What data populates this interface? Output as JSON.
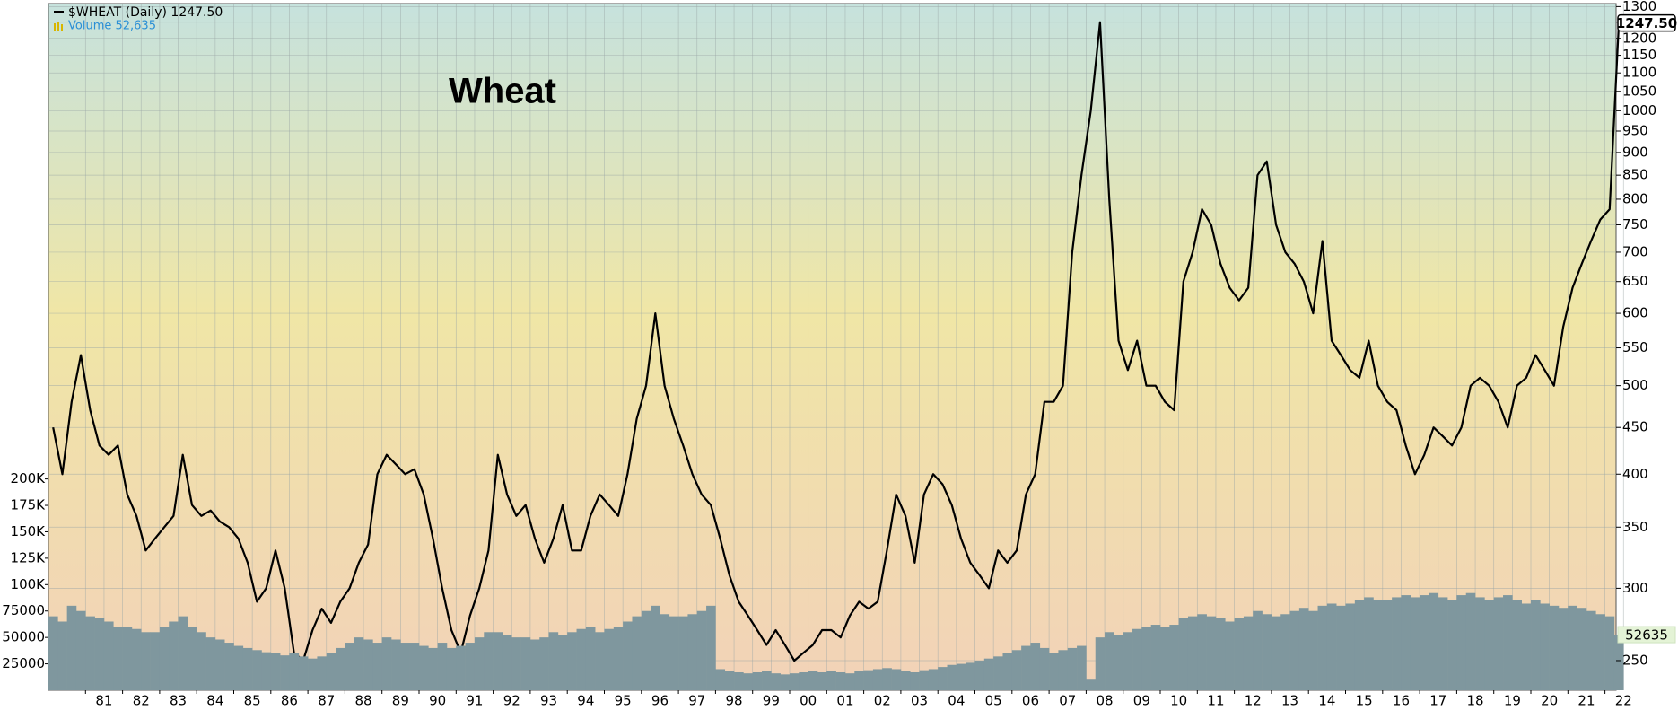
{
  "chart_data": {
    "type": "line",
    "title": "Wheat",
    "categories": [
      null,
      null,
      null,
      null,
      "81",
      null,
      null,
      null,
      "82",
      null,
      null,
      null,
      "83",
      null,
      null,
      null,
      "84",
      null,
      null,
      null,
      "85",
      null,
      null,
      null,
      "86",
      null,
      null,
      null,
      "87",
      null,
      null,
      null,
      "88",
      null,
      null,
      null,
      "89",
      null,
      null,
      null,
      "90",
      null,
      null,
      null,
      "91",
      null,
      null,
      null,
      "92",
      null,
      null,
      null,
      "93",
      null,
      null,
      null,
      "94",
      null,
      null,
      null,
      "95",
      null,
      null,
      null,
      "96",
      null,
      null,
      null,
      "97",
      null,
      null,
      null,
      "98",
      null,
      null,
      null,
      "99",
      null,
      null,
      null,
      "00",
      null,
      null,
      null,
      "01",
      null,
      null,
      null,
      "02",
      null,
      null,
      null,
      "03",
      null,
      null,
      null,
      "04",
      null,
      null,
      null,
      "05",
      null,
      null,
      null,
      "06",
      null,
      null,
      null,
      "07",
      null,
      null,
      null,
      "08",
      null,
      null,
      null,
      "09",
      null,
      null,
      null,
      "10",
      null,
      null,
      null,
      "11",
      null,
      null,
      null,
      "12",
      null,
      null,
      null,
      "13",
      null,
      null,
      null,
      "14",
      null,
      null,
      null,
      "15",
      null,
      null,
      null,
      "16",
      null,
      null,
      null,
      "17",
      null,
      null,
      null,
      "18",
      null,
      null,
      null,
      "19",
      null,
      null,
      null,
      "20",
      null,
      null,
      null,
      "21",
      null,
      null,
      null,
      "22",
      null
    ],
    "series": [
      {
        "name": "$WHEAT (Daily) 1247.50",
        "color": "#000000",
        "tag": "1247.50",
        "values": [
          450,
          400,
          480,
          540,
          470,
          430,
          420,
          430,
          380,
          360,
          330,
          340,
          350,
          360,
          420,
          370,
          360,
          365,
          355,
          350,
          340,
          320,
          290,
          300,
          330,
          300,
          255,
          250,
          270,
          285,
          275,
          290,
          300,
          320,
          335,
          400,
          420,
          410,
          400,
          405,
          380,
          340,
          300,
          270,
          255,
          280,
          300,
          330,
          420,
          380,
          360,
          370,
          340,
          320,
          340,
          370,
          330,
          330,
          360,
          380,
          370,
          360,
          400,
          460,
          500,
          600,
          500,
          460,
          430,
          400,
          380,
          370,
          340,
          310,
          290,
          280,
          270,
          260,
          270,
          260,
          250,
          255,
          260,
          270,
          270,
          265,
          280,
          290,
          285,
          290,
          330,
          380,
          360,
          320,
          380,
          400,
          390,
          370,
          340,
          320,
          310,
          300,
          330,
          320,
          330,
          380,
          400,
          480,
          480,
          500,
          700,
          850,
          1000,
          1250,
          800,
          560,
          520,
          560,
          500,
          500,
          480,
          470,
          650,
          700,
          780,
          750,
          680,
          640,
          620,
          640,
          850,
          880,
          750,
          700,
          680,
          650,
          600,
          720,
          560,
          540,
          520,
          510,
          560,
          500,
          480,
          470,
          430,
          400,
          420,
          450,
          440,
          430,
          450,
          500,
          510,
          500,
          480,
          450,
          500,
          510,
          540,
          520,
          500,
          580,
          640,
          680,
          720,
          760,
          780,
          1247.5
        ]
      },
      {
        "name": "Volume 52,635",
        "color": "#7f979e",
        "axis": "y2",
        "tag": "52635",
        "values": [
          70000,
          65000,
          80000,
          75000,
          70000,
          68000,
          65000,
          60000,
          60000,
          58000,
          55000,
          55000,
          60000,
          65000,
          70000,
          60000,
          55000,
          50000,
          48000,
          45000,
          42000,
          40000,
          38000,
          36000,
          35000,
          33000,
          35000,
          32000,
          30000,
          32000,
          35000,
          40000,
          45000,
          50000,
          48000,
          45000,
          50000,
          48000,
          45000,
          45000,
          42000,
          40000,
          45000,
          40000,
          42000,
          45000,
          50000,
          55000,
          55000,
          52000,
          50000,
          50000,
          48000,
          50000,
          55000,
          52000,
          55000,
          58000,
          60000,
          55000,
          58000,
          60000,
          65000,
          70000,
          75000,
          80000,
          72000,
          70000,
          70000,
          72000,
          75000,
          80000,
          20000,
          18000,
          17000,
          16000,
          17000,
          18000,
          16000,
          15000,
          16000,
          17000,
          18000,
          17000,
          18000,
          17000,
          16000,
          18000,
          19000,
          20000,
          21000,
          20000,
          18000,
          17000,
          19000,
          20000,
          22000,
          24000,
          25000,
          26000,
          28000,
          30000,
          32000,
          35000,
          38000,
          42000,
          45000,
          40000,
          35000,
          38000,
          40000,
          42000,
          10000,
          50000,
          55000,
          52000,
          55000,
          58000,
          60000,
          62000,
          60000,
          62000,
          68000,
          70000,
          72000,
          70000,
          68000,
          65000,
          68000,
          70000,
          75000,
          72000,
          70000,
          72000,
          75000,
          78000,
          75000,
          80000,
          82000,
          80000,
          82000,
          85000,
          88000,
          85000,
          85000,
          88000,
          90000,
          88000,
          90000,
          92000,
          88000,
          85000,
          90000,
          92000,
          88000,
          85000,
          88000,
          90000,
          85000,
          82000,
          85000,
          82000,
          80000,
          78000,
          80000,
          78000,
          75000,
          72000,
          70000,
          52635
        ]
      }
    ],
    "ylog": true,
    "ylim": [
      232,
      1310
    ],
    "yticks": [
      250,
      300,
      350,
      400,
      450,
      500,
      550,
      600,
      650,
      700,
      750,
      800,
      850,
      900,
      950,
      1000,
      1050,
      1100,
      1150,
      1200,
      1250,
      1300
    ],
    "y2lim": [
      0,
      650000
    ],
    "y2ticks": [
      25000,
      50000,
      75000,
      {
        "value": 100000,
        "label": "100K"
      },
      {
        "value": 125000,
        "label": "125K"
      },
      {
        "value": 150000,
        "label": "150K"
      },
      {
        "value": 175000,
        "label": "175K"
      },
      {
        "value": 200000,
        "label": "200K"
      }
    ],
    "grid": true
  }
}
